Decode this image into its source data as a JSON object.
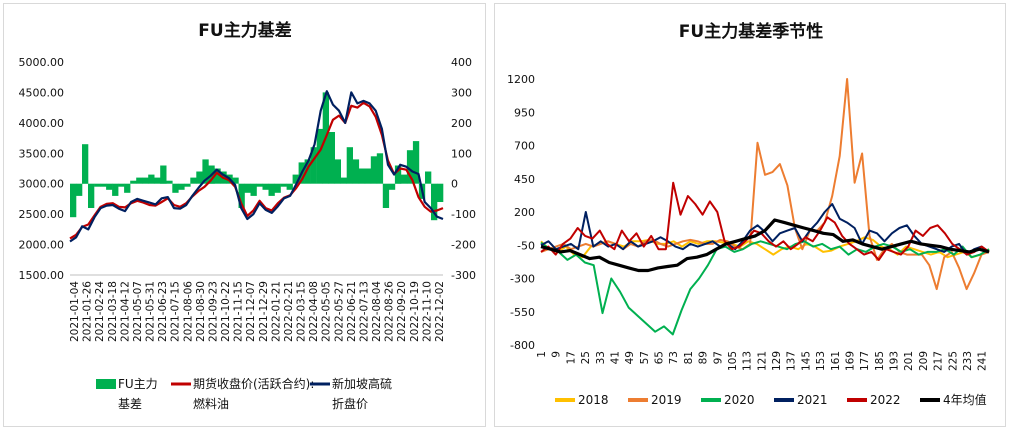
{
  "chart_data": [
    {
      "type": "line",
      "title": "FU主力基差",
      "y_left_lim": [
        1500,
        5000
      ],
      "y_left_ticks": [
        "5000.00",
        "4500.00",
        "4000.00",
        "3500.00",
        "3000.00",
        "2500.00",
        "2000.00",
        "1500.00"
      ],
      "y_right_lim": [
        -300,
        400
      ],
      "y_right_ticks": [
        "400",
        "300",
        "200",
        "100",
        "0",
        "-100",
        "-200",
        "-300"
      ],
      "x_ticks": [
        "2021-01-04",
        "2021-01-26",
        "2021-02-24",
        "2021-03-18",
        "2021-04-12",
        "2021-05-07",
        "2021-05-31",
        "2021-06-23",
        "2021-07-15",
        "2021-08-06",
        "2021-08-30",
        "2021-09-23",
        "2021-10-22",
        "2021-11-15",
        "2021-12-07",
        "2021-12-29",
        "2022-01-21",
        "2022-02-21",
        "2022-03-15",
        "2022-04-08",
        "2022-05-05",
        "2022-05-27",
        "2022-06-21",
        "2022-07-13",
        "2022-08-04",
        "2022-08-26",
        "2022-09-20",
        "2022-10-19",
        "2022-11-10",
        "2022-12-02"
      ],
      "legend_position": "bottom",
      "legend": [
        {
          "line1": "FU主力",
          "line2": "基差",
          "color": "#00b050"
        },
        {
          "line1": "期货收盘价(活跃合约):",
          "line2": "燃料油",
          "color": "#c00000"
        },
        {
          "line1": "新加坡高硫",
          "line2": "折盘价",
          "color": "#002060"
        }
      ],
      "series": [
        {
          "name": "期货收盘价(活跃合约):燃料油",
          "axis": "left",
          "color": "#c00000",
          "type": "line",
          "values": [
            2100,
            2160,
            2290,
            2330,
            2480,
            2620,
            2670,
            2680,
            2620,
            2610,
            2680,
            2720,
            2690,
            2650,
            2640,
            2700,
            2760,
            2650,
            2620,
            2680,
            2790,
            2880,
            2950,
            3050,
            3180,
            3100,
            3060,
            2950,
            2680,
            2470,
            2560,
            2720,
            2600,
            2560,
            2680,
            2770,
            2810,
            2930,
            3080,
            3280,
            3420,
            3560,
            3800,
            4050,
            4120,
            4000,
            4280,
            4250,
            4330,
            4270,
            4100,
            3800,
            3380,
            3160,
            3250,
            3230,
            3060,
            2780,
            2620,
            2540,
            2560,
            2600
          ]
        },
        {
          "name": "新加坡高硫折盘价",
          "axis": "left",
          "color": "#002060",
          "type": "line",
          "values": [
            2050,
            2120,
            2300,
            2250,
            2450,
            2600,
            2640,
            2650,
            2590,
            2550,
            2700,
            2750,
            2720,
            2690,
            2660,
            2760,
            2780,
            2600,
            2590,
            2650,
            2800,
            2930,
            3050,
            3130,
            3230,
            3150,
            3090,
            2980,
            2600,
            2420,
            2500,
            2680,
            2570,
            2520,
            2630,
            2760,
            2800,
            2990,
            3200,
            3380,
            3650,
            4200,
            4520,
            4300,
            4200,
            4000,
            4500,
            4320,
            4360,
            4320,
            4200,
            3900,
            3310,
            3150,
            3310,
            3280,
            3200,
            3160,
            2700,
            2600,
            2460,
            2420
          ]
        },
        {
          "name": "FU主力基差",
          "axis": "right",
          "color": "#00b050",
          "type": "bar",
          "values": [
            -110,
            -40,
            130,
            -80,
            -10,
            -10,
            -20,
            -40,
            -10,
            -30,
            10,
            20,
            20,
            30,
            20,
            60,
            10,
            -30,
            -20,
            -10,
            20,
            40,
            80,
            60,
            50,
            40,
            30,
            20,
            -80,
            -30,
            -40,
            -10,
            -20,
            -40,
            -30,
            -10,
            -20,
            30,
            70,
            80,
            120,
            180,
            300,
            170,
            80,
            20,
            120,
            80,
            50,
            50,
            90,
            100,
            -80,
            -20,
            60,
            30,
            110,
            140,
            -50,
            40,
            -120,
            -60
          ]
        }
      ]
    },
    {
      "type": "line",
      "title": "FU主力基差季节性",
      "ylim": [
        -800,
        1200
      ],
      "y_ticks": [
        "1200",
        "950",
        "700",
        "450",
        "200",
        "-50",
        "-300",
        "-550",
        "-800"
      ],
      "x_ticks": [
        "1",
        "9",
        "17",
        "25",
        "33",
        "41",
        "49",
        "57",
        "65",
        "73",
        "81",
        "89",
        "97",
        "105",
        "113",
        "121",
        "129",
        "137",
        "145",
        "153",
        "161",
        "169",
        "177",
        "185",
        "193",
        "201",
        "209",
        "217",
        "225",
        "233",
        "241"
      ],
      "legend_position": "bottom",
      "series": [
        {
          "name": "2018",
          "color": "#ffc000",
          "values": [
            -20,
            -80,
            -100,
            -60,
            -120,
            -140,
            -60,
            -40,
            -20,
            -40,
            -60,
            -20,
            -20,
            -10,
            -40,
            -40,
            -20,
            -60,
            -20,
            -40,
            -20,
            -20,
            -30,
            -40,
            -60,
            -20,
            -40,
            -80,
            -120,
            -80,
            -60,
            -80,
            -40,
            -60,
            -100,
            -90,
            -60,
            -40,
            -20,
            10,
            -10,
            -60,
            -80,
            -120,
            -60,
            -80,
            -100,
            -120,
            -100,
            -140,
            -120,
            -100,
            -140,
            -120,
            -80
          ]
        },
        {
          "name": "2019",
          "color": "#ed7d31",
          "values": [
            -100,
            -80,
            -60,
            -40,
            -80,
            -60,
            -40,
            -60,
            -40,
            -20,
            -40,
            -80,
            -40,
            -60,
            -20,
            -10,
            -40,
            -60,
            -40,
            -20,
            -10,
            -20,
            -40,
            -40,
            -10,
            -20,
            -60,
            -80,
            -40,
            720,
            480,
            500,
            560,
            400,
            80,
            -80,
            60,
            60,
            120,
            320,
            620,
            1200,
            420,
            640,
            20,
            -160,
            -80,
            -40,
            -100,
            -120,
            -120,
            -120,
            -200,
            -380,
            -140,
            -100,
            -220,
            -380,
            -260,
            -120,
            -100
          ]
        },
        {
          "name": "2020",
          "color": "#00b050",
          "values": [
            -30,
            -80,
            -100,
            -160,
            -120,
            -180,
            -200,
            -560,
            -300,
            -400,
            -520,
            -580,
            -640,
            -700,
            -660,
            -720,
            -540,
            -380,
            -300,
            -200,
            -80,
            -60,
            -100,
            -80,
            -40,
            -20,
            -40,
            -60,
            -80,
            -40,
            -20,
            -60,
            -40,
            -80,
            -60,
            -120,
            -80,
            -100,
            -60,
            -40,
            -60,
            -100,
            -80,
            -120,
            -100,
            -100,
            -80,
            -120,
            -60,
            -140,
            -120,
            -80
          ]
        },
        {
          "name": "2021",
          "color": "#002060",
          "values": [
            -50,
            -20,
            -80,
            -60,
            -40,
            -80,
            200,
            -60,
            -20,
            -60,
            -40,
            -80,
            -20,
            -60,
            -40,
            -20,
            10,
            -20,
            -60,
            -80,
            -40,
            -60,
            -40,
            -20,
            -60,
            -40,
            -80,
            -20,
            60,
            100,
            50,
            -20,
            40,
            60,
            80,
            -20,
            60,
            120,
            200,
            260,
            150,
            120,
            80,
            -40,
            60,
            40,
            -20,
            40,
            80,
            100,
            20,
            -40,
            -60,
            -80,
            -100,
            -60,
            -40,
            -120,
            -80,
            -60,
            -100
          ]
        },
        {
          "name": "2022",
          "color": "#c00000",
          "values": [
            -100,
            -60,
            -120,
            -40,
            0,
            80,
            20,
            0,
            60,
            -40,
            -80,
            60,
            -20,
            40,
            -60,
            20,
            -80,
            -80,
            420,
            180,
            320,
            260,
            180,
            280,
            200,
            -20,
            -80,
            -60,
            -10,
            60,
            40,
            -20,
            -60,
            -20,
            -80,
            -40,
            10,
            -20,
            60,
            160,
            120,
            20,
            -40,
            -80,
            -120,
            -100,
            -160,
            -80,
            -100,
            -120,
            -60,
            60,
            20,
            80,
            100,
            40,
            -40,
            -80,
            -120,
            -100,
            -60,
            -100
          ]
        },
        {
          "name": "4年均值",
          "color": "#000000",
          "values": [
            -60,
            -80,
            -100,
            -90,
            -120,
            -150,
            -140,
            -180,
            -200,
            -220,
            -240,
            -240,
            -220,
            -210,
            -200,
            -150,
            -140,
            -120,
            -80,
            -40,
            -20,
            0,
            20,
            60,
            140,
            120,
            100,
            80,
            60,
            40,
            30,
            -20,
            -10,
            -40,
            -60,
            -80,
            -60,
            -40,
            -20,
            -40,
            -50,
            -60,
            -80,
            -90,
            -100,
            -80,
            -100
          ]
        }
      ]
    }
  ]
}
